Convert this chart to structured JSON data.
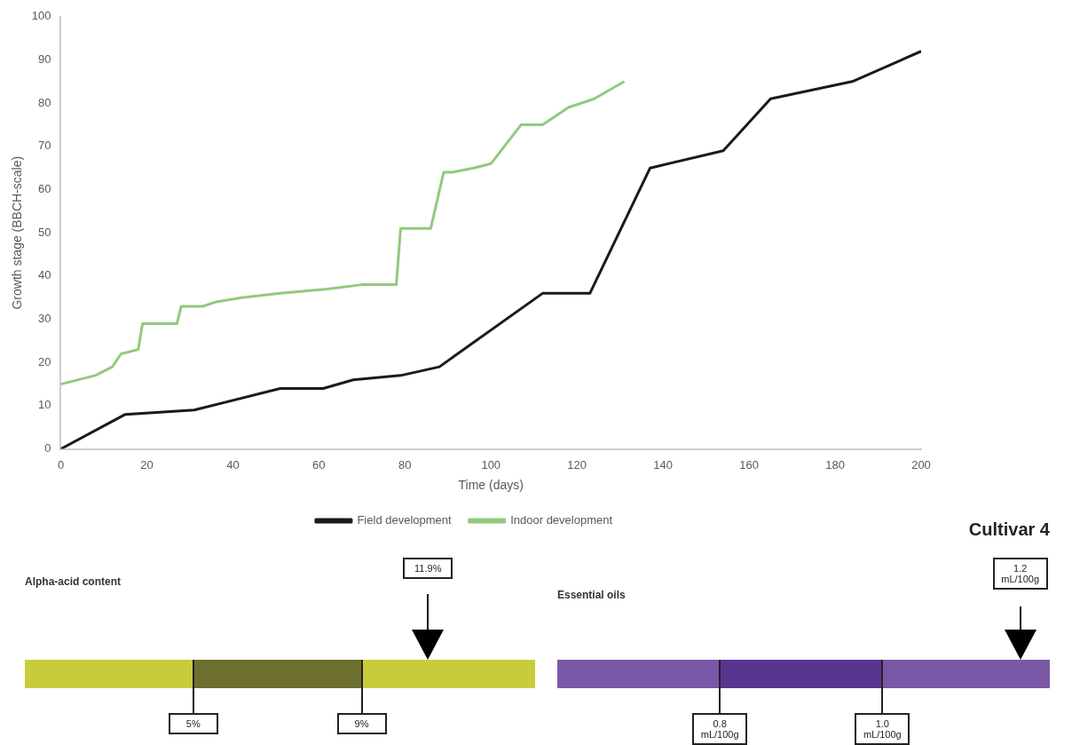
{
  "chart_data": [
    {
      "type": "line",
      "xlabel": "Time (days)",
      "ylabel": "Growth stage (BBCH-scale)",
      "xlim": [
        0,
        200
      ],
      "xticks": [
        0,
        20,
        40,
        60,
        80,
        100,
        120,
        140,
        160,
        180,
        200
      ],
      "ylim": [
        0,
        100
      ],
      "yticks": [
        0,
        10,
        20,
        30,
        40,
        50,
        60,
        70,
        80,
        90,
        100
      ],
      "grid": false,
      "legend": "bottom",
      "marker": "none",
      "series": [
        {
          "name": "Field development",
          "color": "#1a1a1a",
          "x": [
            0,
            15,
            31,
            51,
            61,
            68,
            79,
            88,
            112,
            123,
            137,
            154,
            165,
            184,
            200
          ],
          "values": [
            0,
            8,
            9,
            14,
            14,
            16,
            17,
            19,
            36,
            36,
            65,
            69,
            81,
            85,
            92
          ]
        },
        {
          "name": "Indoor development",
          "color": "#92c97e",
          "x": [
            0,
            8,
            12,
            14,
            18,
            19,
            27,
            28,
            33,
            36,
            42,
            51,
            62,
            70,
            78,
            79,
            86,
            89,
            91,
            96,
            100,
            107,
            112,
            118,
            124,
            131
          ],
          "values": [
            15,
            17,
            19,
            22,
            23,
            29,
            29,
            33,
            33,
            34,
            35,
            36,
            37,
            38,
            38,
            51,
            51,
            64,
            64,
            65,
            66,
            75,
            75,
            79,
            81,
            85
          ]
        }
      ]
    },
    {
      "type": "other",
      "title": "Alpha-acid content",
      "colors": [
        "#c8cc3c",
        "#6e7030"
      ],
      "annotations": [
        "5%",
        "9%",
        "11.9%"
      ]
    },
    {
      "type": "other",
      "title": "Essential oils",
      "colors": [
        "#7a58a8",
        "#5a3590"
      ],
      "annotations": [
        "0.8 mL/100g",
        "1.0 mL/100g",
        "1.2 mL/100g",
        "Cultivar 4"
      ]
    }
  ]
}
